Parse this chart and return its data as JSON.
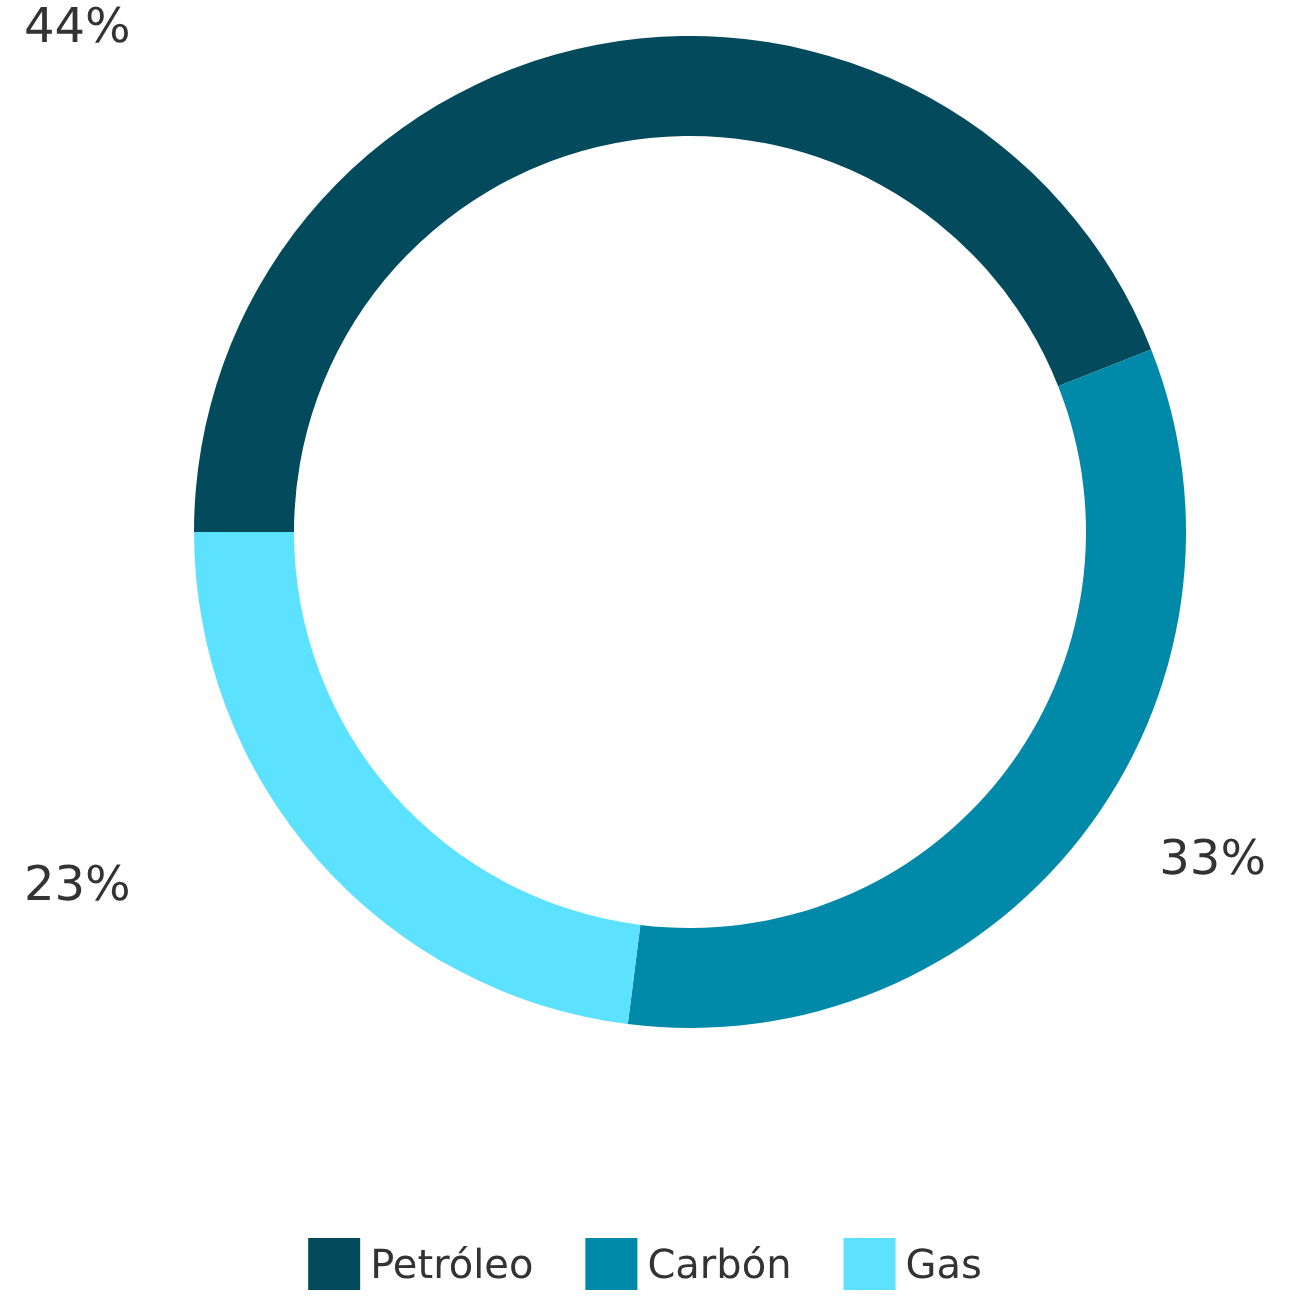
{
  "chart_data": {
    "type": "donut",
    "categories": [
      "Petróleo",
      "Carbón",
      "Gas"
    ],
    "values": [
      44,
      33,
      23
    ],
    "colors": [
      "#034b5c",
      "#0089a8",
      "#5ce1ff"
    ],
    "value_labels": [
      "44%",
      "33%",
      "23%"
    ],
    "legend": "bottom"
  }
}
